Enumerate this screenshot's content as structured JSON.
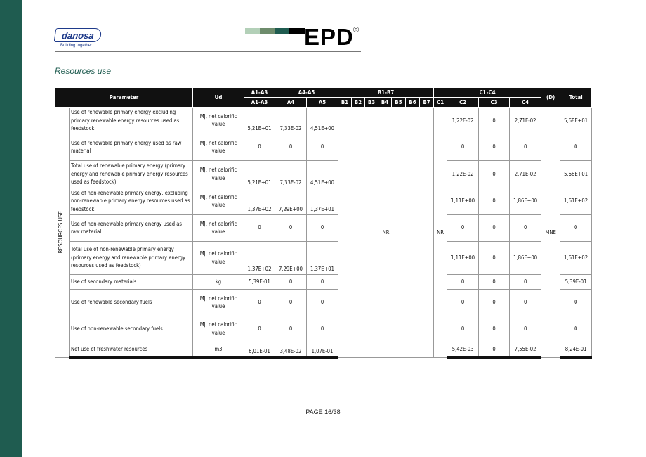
{
  "colors": {
    "sidebar": "#1f5c50",
    "header_bg": "#111111",
    "bars": [
      "#b3d0b8",
      "#6e8c6c",
      "#1f5c50",
      "#000000"
    ]
  },
  "logo": {
    "name": "danosa",
    "tagline": "Building together"
  },
  "epd": {
    "label": "EPD",
    "reg": "®"
  },
  "section_title": "Resources use",
  "table": {
    "group_headers": {
      "parameter": "Parameter",
      "ud": "Ud",
      "a1a3": "A1-A3",
      "a4a5": "A4-A5",
      "b1b7": "B1-B7",
      "c1c4": "C1-C4",
      "d": "(D)",
      "total": "Total"
    },
    "sub_headers": [
      "A1-A3",
      "A4",
      "A5",
      "B1",
      "B2",
      "B3",
      "B4",
      "B5",
      "B6",
      "B7",
      "C1",
      "C2",
      "C3",
      "C4"
    ],
    "side_label": "RESOURCES USE",
    "b_value": "NR",
    "c1_value": "NR",
    "d_value": "MNE",
    "rows": [
      {
        "parameter": "Use of renewable primary energy excluding primary renewable energy resources used as feedstock",
        "ud": "MJ, net calorific value",
        "a1a3": "5,21E+01",
        "a4": "7,33E-02",
        "a5": "4,51E+00",
        "c2": "1,22E-02",
        "c3": "0",
        "c4": "2,71E-02",
        "total": "5,68E+01"
      },
      {
        "parameter": "Use of renewable primary energy used as raw material",
        "ud": "MJ, net calorific value",
        "a1a3": "0",
        "a4": "0",
        "a5": "0",
        "c2": "0",
        "c3": "0",
        "c4": "0",
        "total": "0"
      },
      {
        "parameter": "Total use of renewable primary energy (primary energy and renewable primary energy resources used as feedstock)",
        "ud": "MJ, net calorific value",
        "a1a3": "5,21E+01",
        "a4": "7,33E-02",
        "a5": "4,51E+00",
        "c2": "1,22E-02",
        "c3": "0",
        "c4": "2,71E-02",
        "total": "5,68E+01"
      },
      {
        "parameter": "Use of non-renewable primary energy, excluding non-renewable primary energy resources used as feedstock",
        "ud": "MJ, net calorific value",
        "a1a3": "1,37E+02",
        "a4": "7,29E+00",
        "a5": "1,37E+01",
        "c2": "1,11E+00",
        "c3": "0",
        "c4": "1,86E+00",
        "total": "1,61E+02"
      },
      {
        "parameter": "Use of non-renewable primary energy used as raw material",
        "ud": "MJ, net calorific value",
        "a1a3": "0",
        "a4": "0",
        "a5": "0",
        "c2": "0",
        "c3": "0",
        "c4": "0",
        "total": "0"
      },
      {
        "parameter": "Total use of non-renewable primary energy (primary energy and renewable primary energy resources used as feedstock)",
        "ud": "MJ, net calorific value",
        "a1a3": "1,37E+02",
        "a4": "7,29E+00",
        "a5": "1,37E+01",
        "c2": "1,11E+00",
        "c3": "0",
        "c4": "1,86E+00",
        "total": "1,61E+02"
      },
      {
        "parameter": "Use of secondary materials",
        "ud": "kg",
        "a1a3": "5,39E-01",
        "a4": "0",
        "a5": "0",
        "c2": "0",
        "c3": "0",
        "c4": "0",
        "total": "5,39E-01"
      },
      {
        "parameter": "Use of renewable secondary fuels",
        "ud": "MJ, net calorific value",
        "a1a3": "0",
        "a4": "0",
        "a5": "0",
        "c2": "0",
        "c3": "0",
        "c4": "0",
        "total": "0"
      },
      {
        "parameter": "Use of non-renewable secondary fuels",
        "ud": "MJ, net calorific value",
        "a1a3": "0",
        "a4": "0",
        "a5": "0",
        "c2": "0",
        "c3": "0",
        "c4": "0",
        "total": "0"
      },
      {
        "parameter": "Net use of freshwater resources",
        "ud": "m3",
        "a1a3": "6,01E-01",
        "a4": "3,48E-02",
        "a5": "1,07E-01",
        "c2": "5,42E-03",
        "c3": "0",
        "c4": "7,55E-02",
        "total": "8,24E-01"
      }
    ]
  },
  "footer": "PAGE 16/38"
}
